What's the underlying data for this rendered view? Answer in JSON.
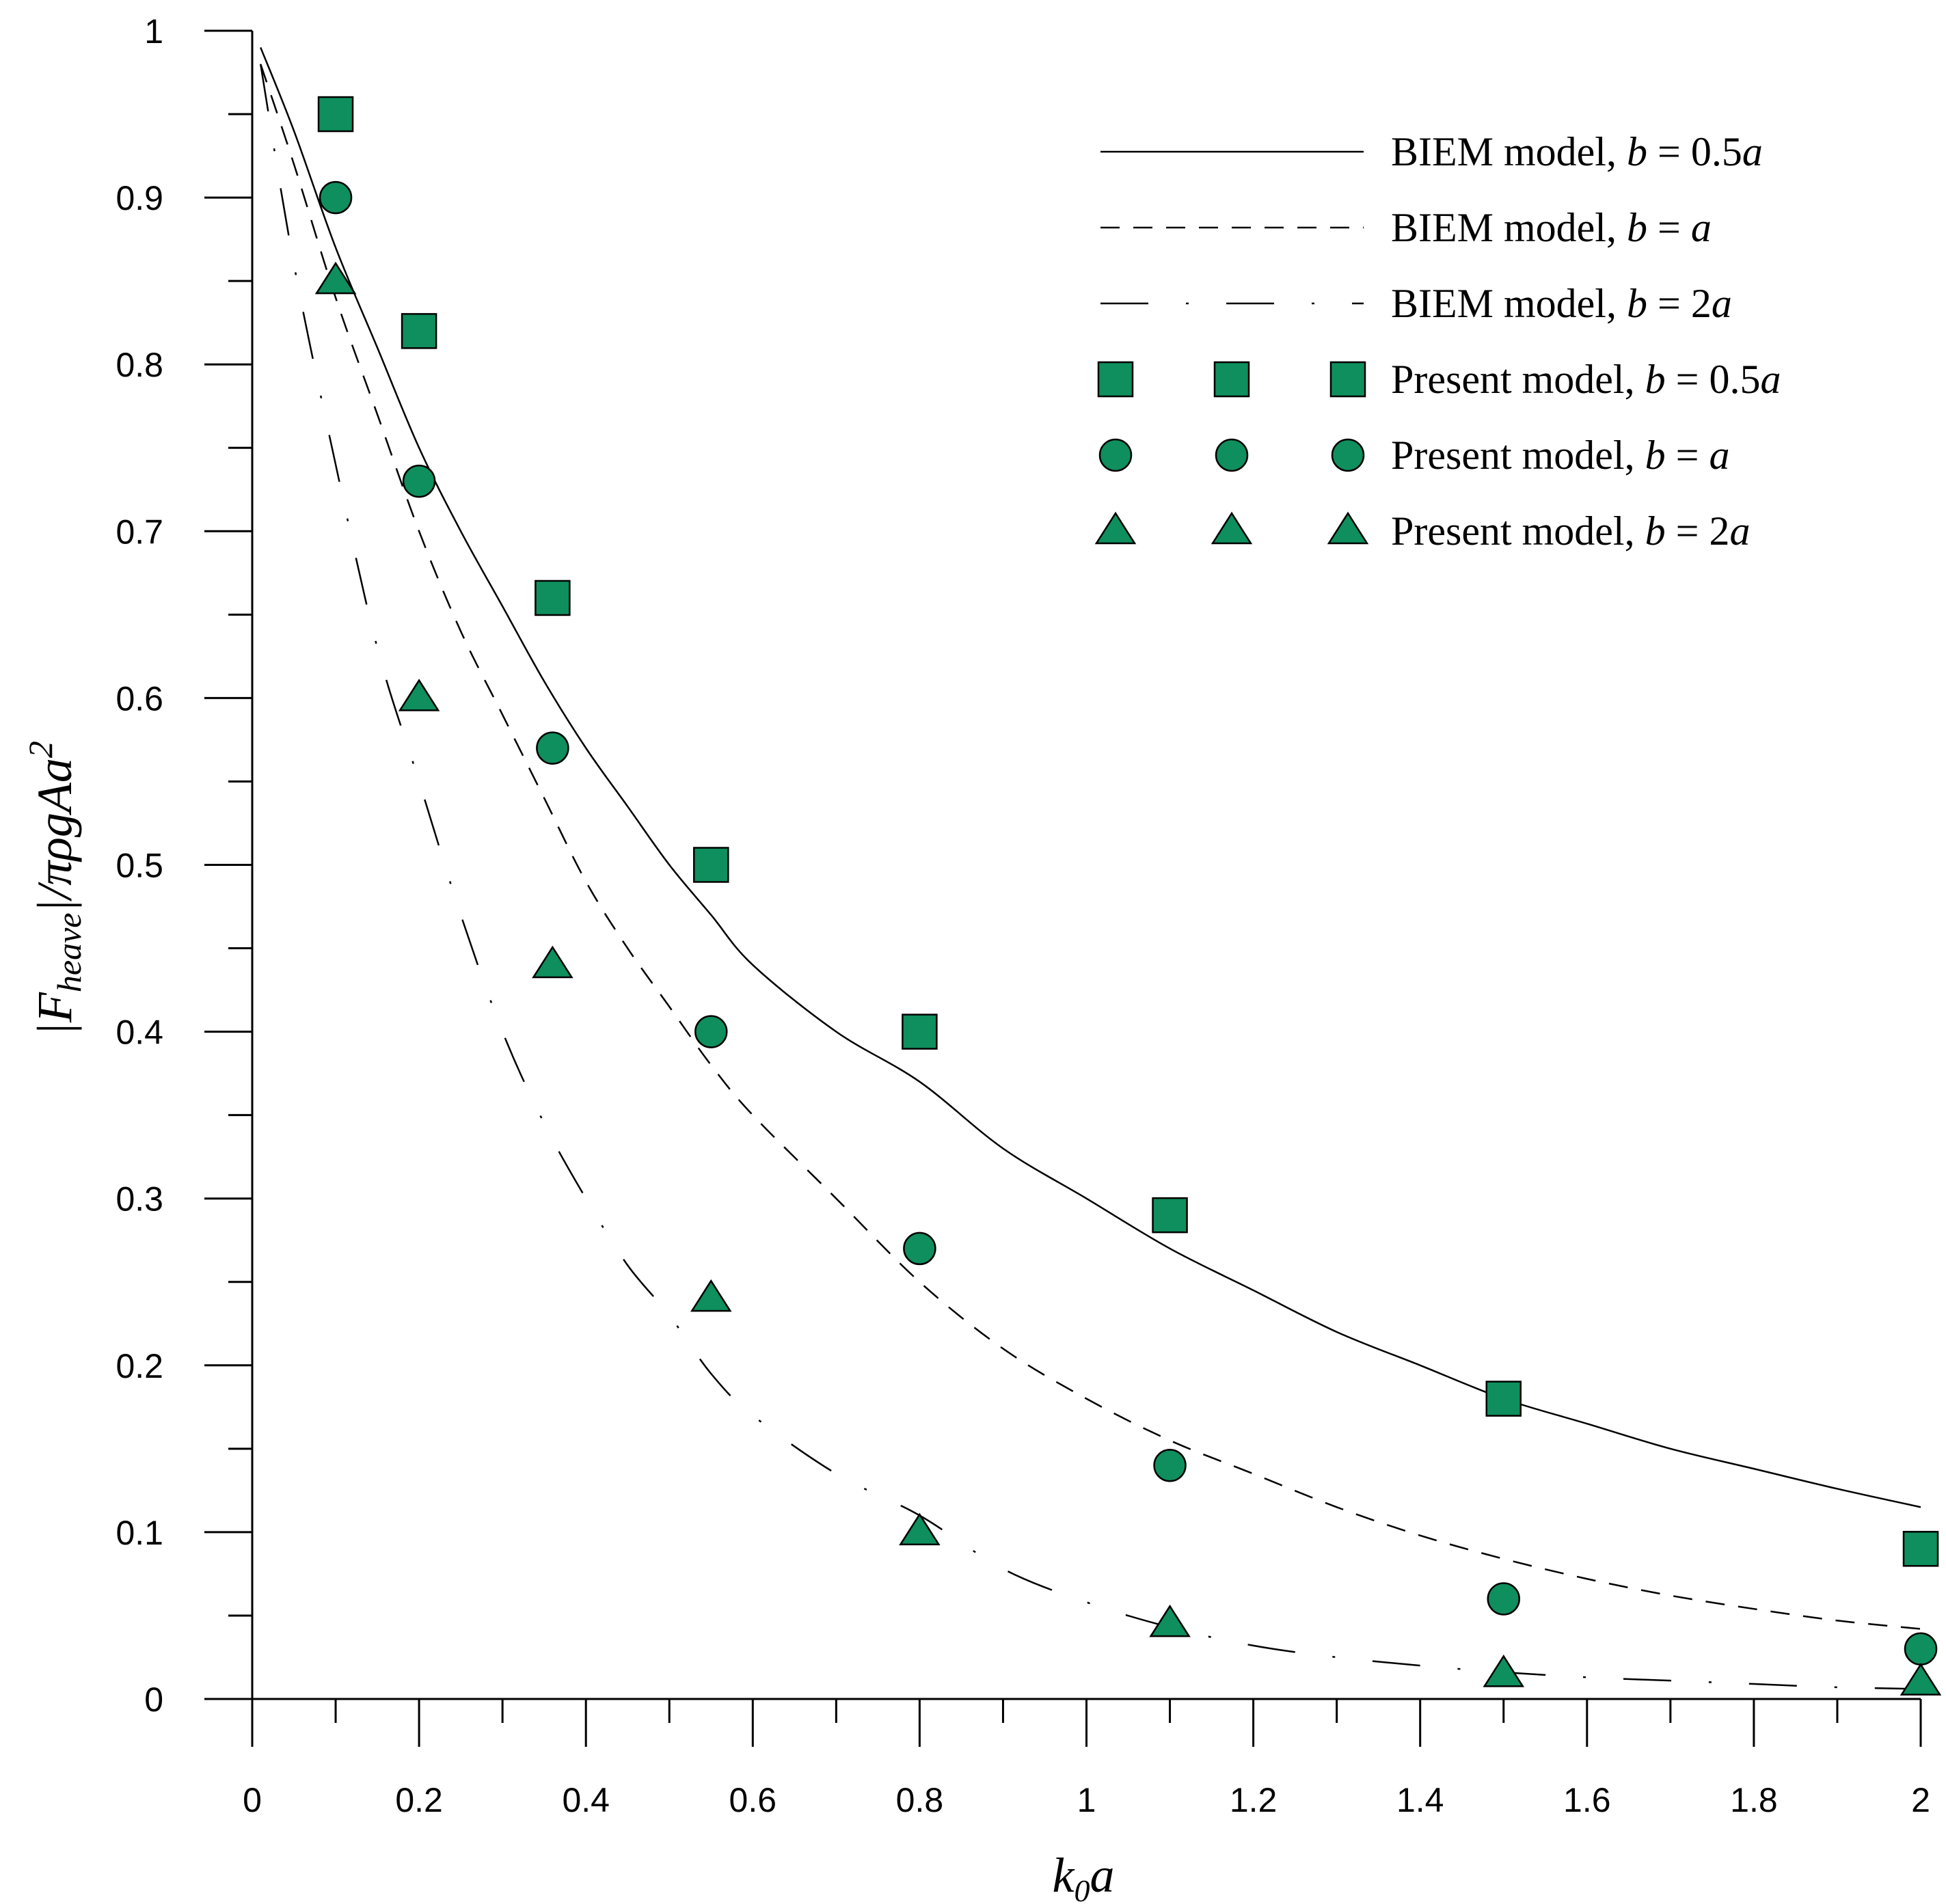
{
  "chart_data": {
    "type": "line",
    "title": "",
    "xlabel": {
      "main": "k",
      "sub": "0",
      "tail": "a"
    },
    "ylabel": {
      "pre": "|F",
      "sub": "heave",
      "mid": "|/πρgAa",
      "sup": "2"
    },
    "xlim": [
      0,
      2
    ],
    "ylim": [
      0,
      1
    ],
    "x_ticks": [
      0,
      0.2,
      0.4,
      0.6,
      0.8,
      1,
      1.2,
      1.4,
      1.6,
      1.8,
      2
    ],
    "x_tick_labels": [
      "0",
      "0.2",
      "0.4",
      "0.6",
      "0.8",
      "1",
      "1.2",
      "1.4",
      "1.6",
      "1.8",
      "2"
    ],
    "y_ticks": [
      0,
      0.1,
      0.2,
      0.3,
      0.4,
      0.5,
      0.6,
      0.7,
      0.8,
      0.9,
      1
    ],
    "y_tick_labels": [
      "0",
      "0.1",
      "0.2",
      "0.3",
      "0.4",
      "0.5",
      "0.6",
      "0.7",
      "0.8",
      "0.9",
      "1"
    ],
    "grid": false,
    "legend_position": "top-right",
    "lines": [
      {
        "name": "BIEM model, b = 0.5a",
        "label_prefix": "BIEM model, ",
        "label_var": "b",
        "label_eq": " = 0.5",
        "label_tail": "a",
        "style": "solid",
        "x": [
          0.01,
          0.05,
          0.1,
          0.15,
          0.2,
          0.25,
          0.3,
          0.35,
          0.4,
          0.45,
          0.5,
          0.55,
          0.6,
          0.7,
          0.8,
          0.9,
          1.0,
          1.1,
          1.2,
          1.3,
          1.4,
          1.5,
          1.6,
          1.7,
          1.8,
          1.9,
          2.0
        ],
        "y": [
          0.99,
          0.94,
          0.87,
          0.81,
          0.75,
          0.7,
          0.655,
          0.61,
          0.57,
          0.535,
          0.5,
          0.47,
          0.44,
          0.4,
          0.37,
          0.33,
          0.3,
          0.27,
          0.245,
          0.22,
          0.2,
          0.18,
          0.165,
          0.15,
          0.138,
          0.126,
          0.115
        ]
      },
      {
        "name": "BIEM model, b = a",
        "label_prefix": "BIEM model, ",
        "label_var": "b",
        "label_eq": " = ",
        "label_tail": "a",
        "style": "dashed",
        "x": [
          0.01,
          0.05,
          0.1,
          0.15,
          0.2,
          0.25,
          0.3,
          0.35,
          0.4,
          0.45,
          0.5,
          0.55,
          0.6,
          0.7,
          0.8,
          0.9,
          1.0,
          1.1,
          1.2,
          1.3,
          1.4,
          1.5,
          1.6,
          1.7,
          1.8,
          1.9,
          2.0
        ],
        "y": [
          0.98,
          0.92,
          0.84,
          0.77,
          0.7,
          0.64,
          0.59,
          0.54,
          0.49,
          0.45,
          0.415,
          0.38,
          0.35,
          0.3,
          0.25,
          0.21,
          0.18,
          0.155,
          0.135,
          0.115,
          0.098,
          0.084,
          0.072,
          0.062,
          0.054,
          0.047,
          0.042
        ]
      },
      {
        "name": "BIEM model, b = 2a",
        "label_prefix": "BIEM model, ",
        "label_var": "b",
        "label_eq": " = 2",
        "label_tail": "a",
        "style": "dash-dot",
        "x": [
          0.01,
          0.05,
          0.1,
          0.15,
          0.2,
          0.25,
          0.3,
          0.35,
          0.4,
          0.45,
          0.5,
          0.55,
          0.6,
          0.7,
          0.8,
          0.9,
          1.0,
          1.1,
          1.2,
          1.3,
          1.4,
          1.5,
          1.6,
          1.7,
          1.8,
          1.9,
          2.0
        ],
        "y": [
          0.98,
          0.86,
          0.74,
          0.63,
          0.55,
          0.47,
          0.4,
          0.345,
          0.3,
          0.26,
          0.23,
          0.195,
          0.17,
          0.135,
          0.11,
          0.078,
          0.058,
          0.043,
          0.032,
          0.025,
          0.02,
          0.016,
          0.013,
          0.011,
          0.009,
          0.007,
          0.006
        ]
      }
    ],
    "series": [
      {
        "name": "Present model, b = 0.5a",
        "label_prefix": "Present model, ",
        "label_var": "b",
        "label_eq": " = 0.5",
        "label_tail": "a",
        "marker": "square",
        "x": [
          0.1,
          0.2,
          0.36,
          0.55,
          0.8,
          1.1,
          1.5,
          2.0
        ],
        "y": [
          0.95,
          0.82,
          0.66,
          0.5,
          0.4,
          0.29,
          0.18,
          0.09
        ]
      },
      {
        "name": "Present model, b = a",
        "label_prefix": "Present model, ",
        "label_var": "b",
        "label_eq": " = ",
        "label_tail": "a",
        "marker": "circle",
        "x": [
          0.1,
          0.2,
          0.36,
          0.55,
          0.8,
          1.1,
          1.5,
          2.0
        ],
        "y": [
          0.9,
          0.73,
          0.57,
          0.4,
          0.27,
          0.14,
          0.06,
          0.03
        ]
      },
      {
        "name": "Present model, b = 2a",
        "label_prefix": "Present model, ",
        "label_var": "b",
        "label_eq": " = 2",
        "label_tail": "a",
        "marker": "triangle",
        "x": [
          0.1,
          0.2,
          0.36,
          0.55,
          0.8,
          1.1,
          1.5,
          2.0
        ],
        "y": [
          0.85,
          0.6,
          0.44,
          0.24,
          0.1,
          0.045,
          0.015,
          0.01
        ]
      }
    ],
    "marker_color": "#0e8f5d",
    "marker_edge_color": "#000000",
    "line_color": "#000000"
  }
}
